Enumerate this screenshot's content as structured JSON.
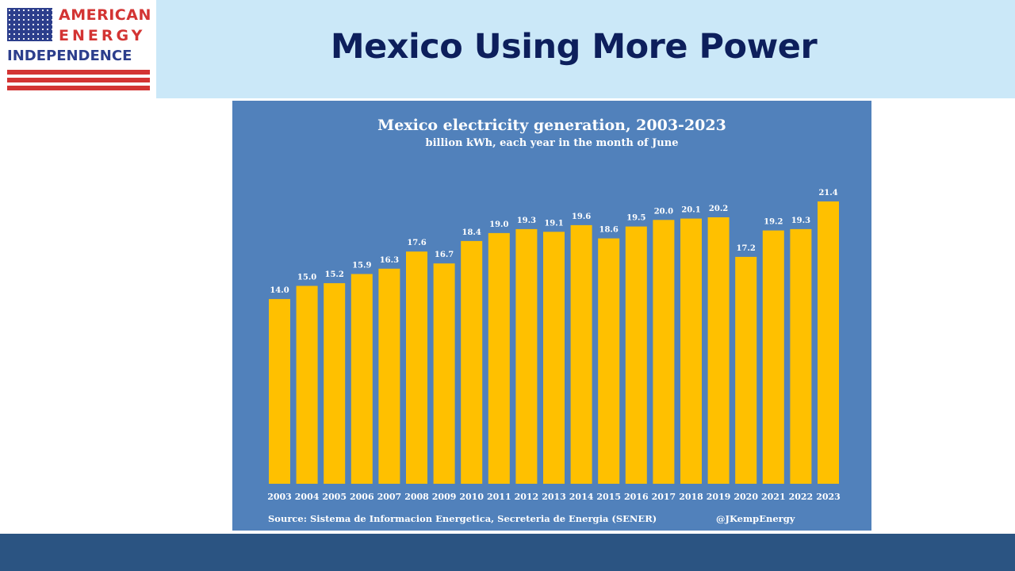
{
  "header": {
    "title": "Mexico Using More Power",
    "band_color": "#cbe8f8",
    "title_color": "#0d1f5c"
  },
  "logo": {
    "line1": "AMERICAN",
    "line2": "ENERGY",
    "line3": "INDEPENDENCE",
    "icon": "us-flag-icon",
    "red": "#d33433",
    "blue": "#2c3e8c"
  },
  "chart": {
    "source": "Source: Sistema de Informacion Energetica, Secreteria de Energia (SENER)",
    "credit": "@JKempEnergy",
    "background": "#5181bb",
    "bar_color": "#ffc000"
  },
  "chart_data": {
    "type": "bar",
    "title": "Mexico electricity generation, 2003-2023",
    "subtitle": "billion kWh, each year in the month of June",
    "xlabel": "",
    "ylabel": "",
    "categories": [
      "2003",
      "2004",
      "2005",
      "2006",
      "2007",
      "2008",
      "2009",
      "2010",
      "2011",
      "2012",
      "2013",
      "2014",
      "2015",
      "2016",
      "2017",
      "2018",
      "2019",
      "2020",
      "2021",
      "2022",
      "2023"
    ],
    "values": [
      14.0,
      15.0,
      15.2,
      15.9,
      16.3,
      17.6,
      16.7,
      18.4,
      19.0,
      19.3,
      19.1,
      19.6,
      18.6,
      19.5,
      20.0,
      20.1,
      20.2,
      17.2,
      19.2,
      19.3,
      21.4
    ],
    "value_labels": [
      "14.0",
      "15.0",
      "15.2",
      "15.9",
      "16.3",
      "17.6",
      "16.7",
      "18.4",
      "19.0",
      "19.3",
      "19.1",
      "19.6",
      "18.6",
      "19.5",
      "20.0",
      "20.1",
      "20.2",
      "17.2",
      "19.2",
      "19.3",
      "21.4"
    ],
    "ylim": [
      0,
      21.4
    ],
    "grid": false,
    "legend": "none"
  },
  "footer": {
    "color": "#2b5482"
  }
}
